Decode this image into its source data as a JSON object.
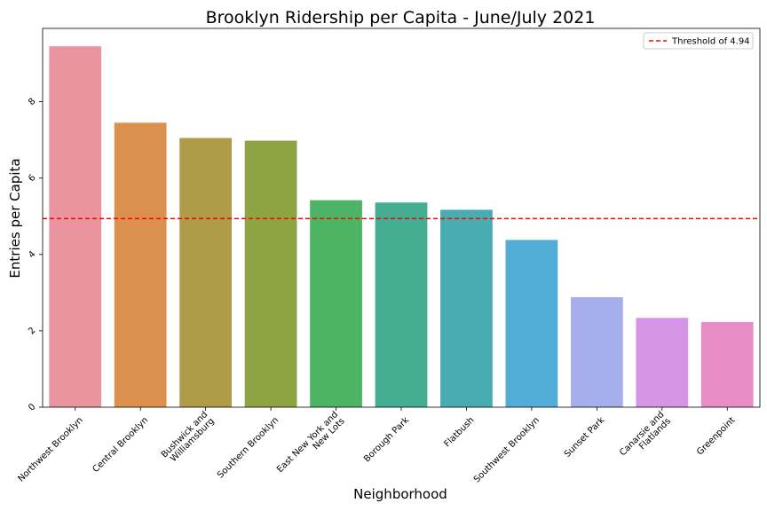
{
  "chart_data": {
    "type": "bar",
    "title": "Brooklyn Ridership per Capita - June/July 2021",
    "xlabel": "Neighborhood",
    "ylabel": "Entries per Capita",
    "categories": [
      "Northwest Brooklyn",
      "Central Brooklyn",
      "Bushwick and\nWilliamsburg",
      "Southern Brooklyn",
      "East New York and\nNew Lots",
      "Borough Park",
      "Flatbush",
      "Southwest Brooklyn",
      "Sunset Park",
      "Canarsie and\nFlatlands",
      "Greenpoint"
    ],
    "values": [
      9.45,
      7.45,
      7.05,
      6.98,
      5.42,
      5.36,
      5.17,
      4.38,
      2.88,
      2.34,
      2.23
    ],
    "colors": [
      "#e9949f",
      "#db904d",
      "#b09b49",
      "#8ea443",
      "#4db466",
      "#44ae92",
      "#49acb1",
      "#53acd5",
      "#a6aeeb",
      "#d594e5",
      "#e88cc6"
    ],
    "ylim": [
      0,
      9.92
    ],
    "yticks": [
      0,
      2,
      4,
      6,
      8
    ],
    "threshold": {
      "value": 4.94,
      "label": "Threshold of 4.94",
      "color": "#ff0000"
    },
    "legend_position": "top-right",
    "grid": false
  }
}
